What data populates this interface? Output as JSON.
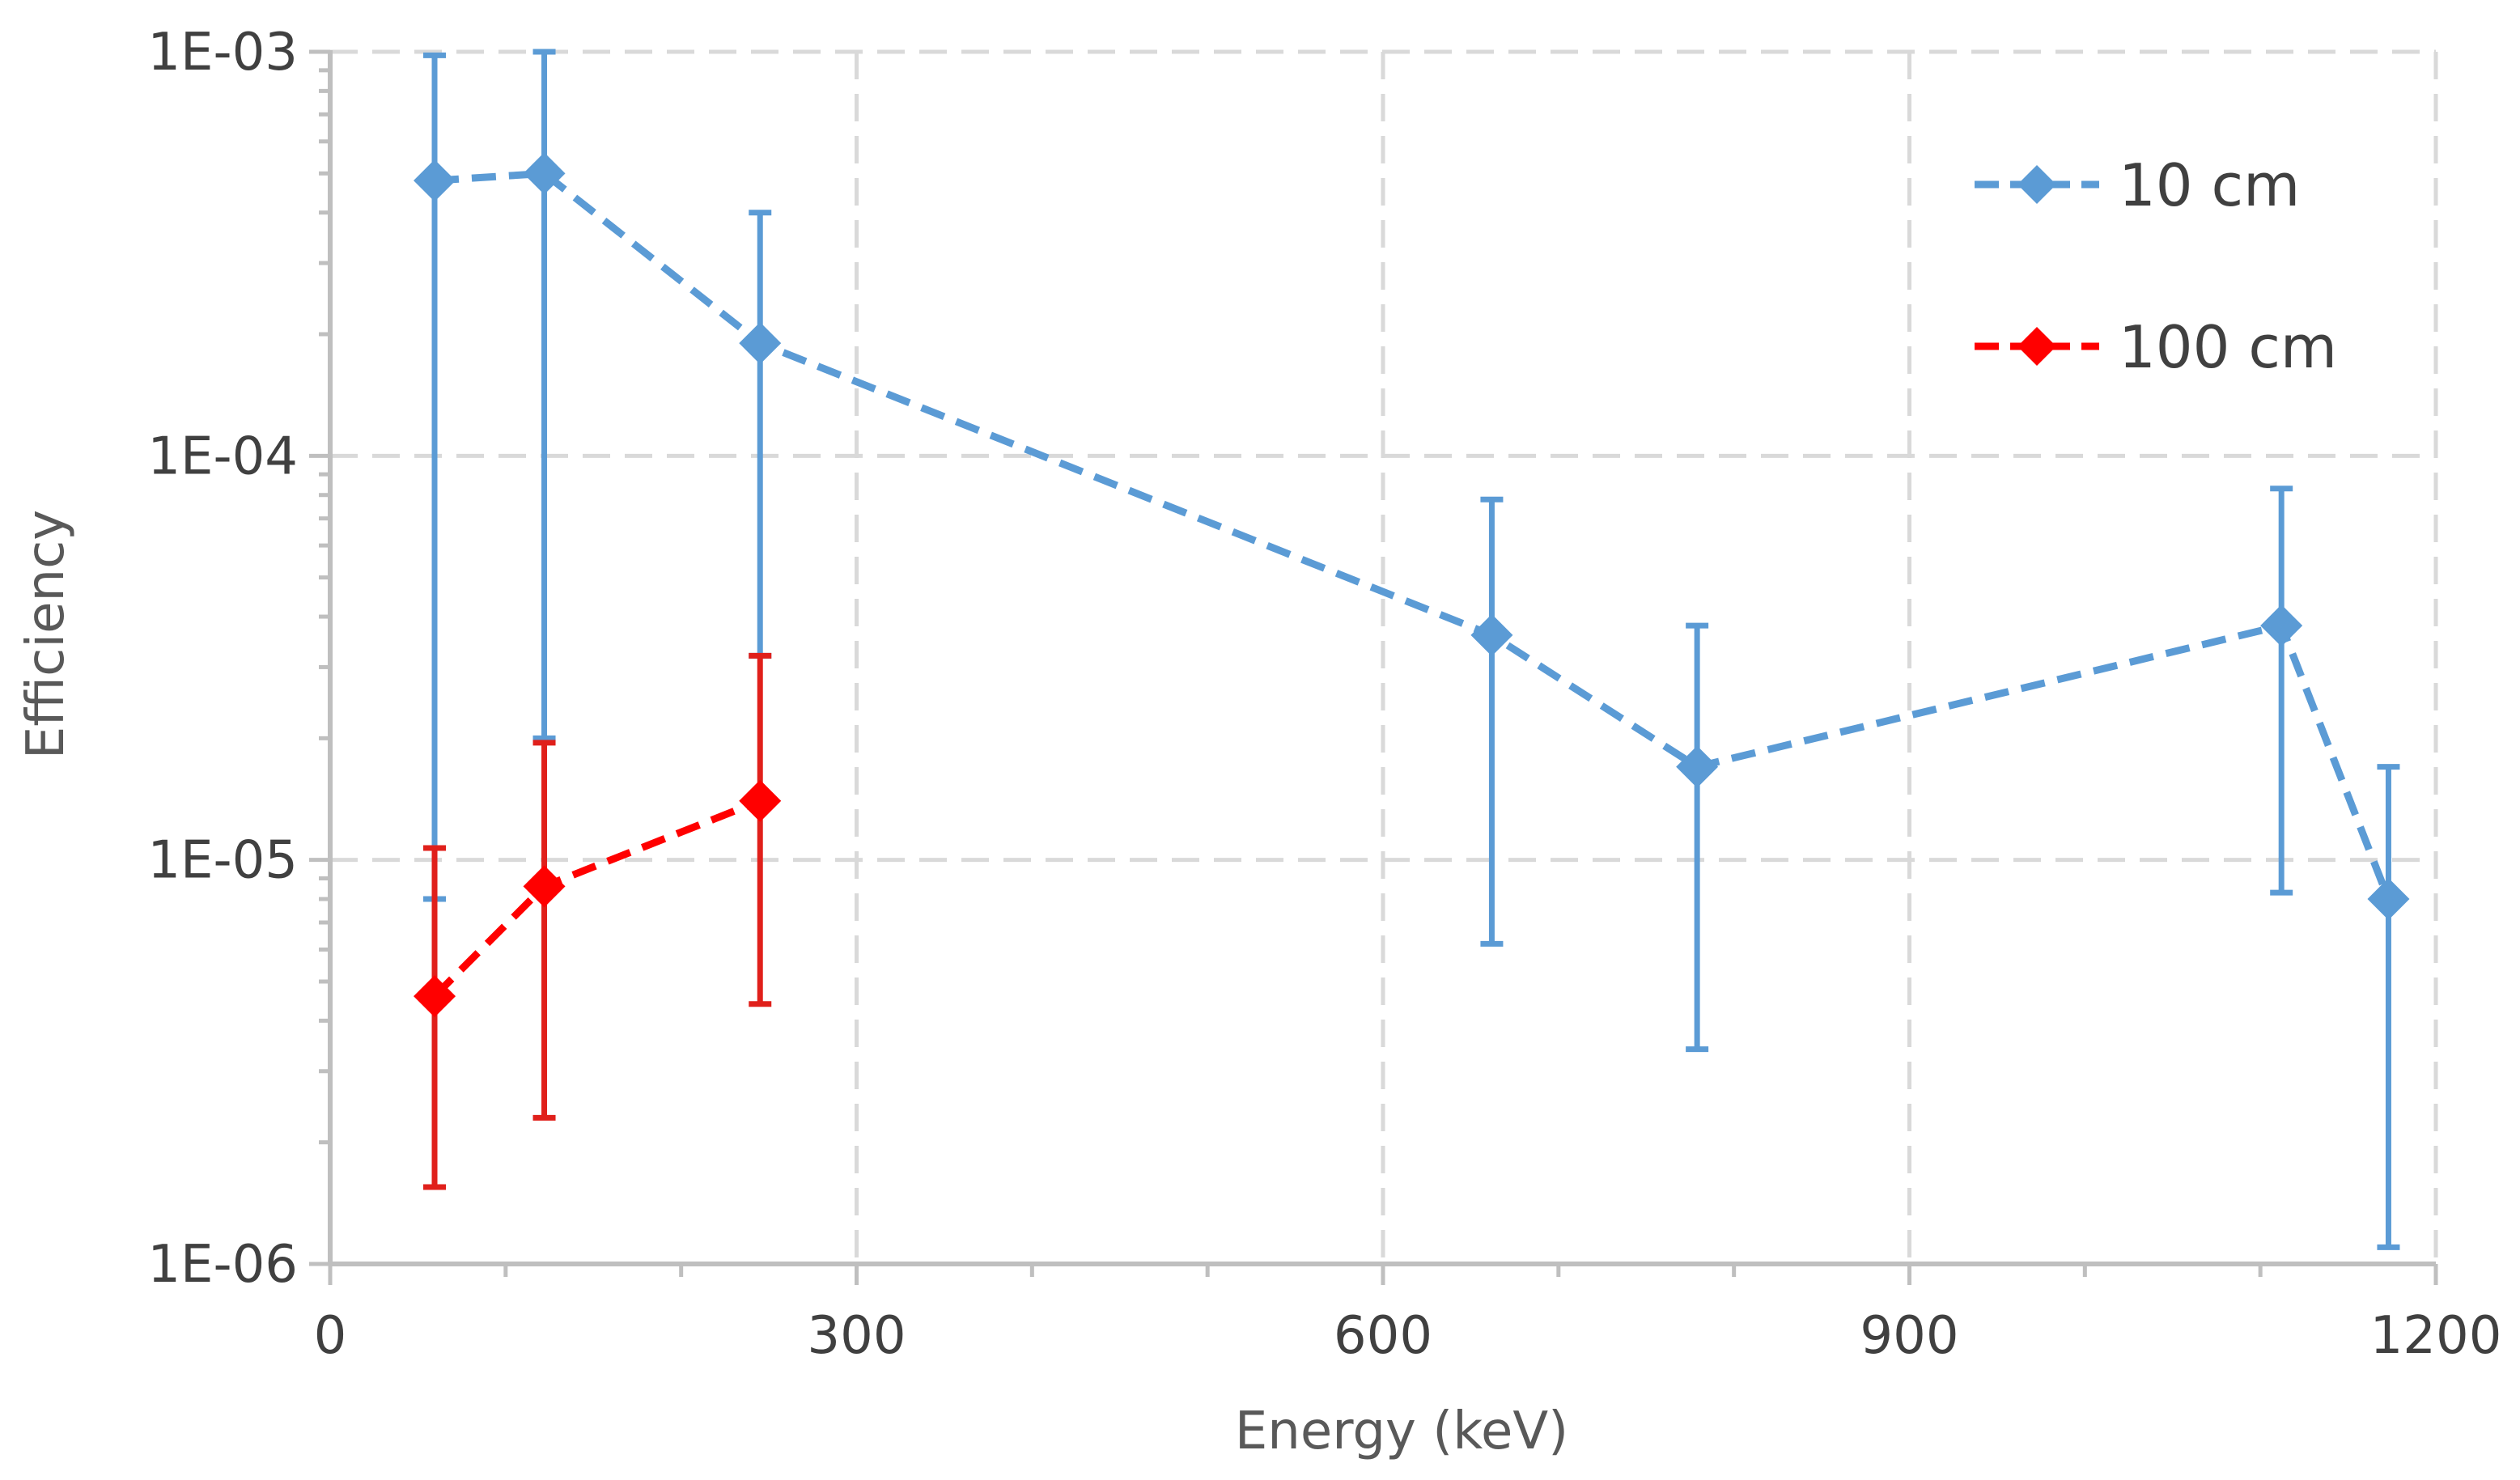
{
  "chart_data": {
    "type": "scatter",
    "title": "",
    "xlabel": "Energy (keV)",
    "ylabel": "Efficiency",
    "xlim": [
      0,
      1200
    ],
    "ylim": [
      1e-06,
      0.001
    ],
    "yscale": "log",
    "grid": true,
    "legend_position": "top-right",
    "x_ticks": [
      0,
      300,
      600,
      900,
      1200
    ],
    "x_tick_labels": [
      "0",
      "300",
      "600",
      "900",
      "1200"
    ],
    "y_ticks": [
      1e-06,
      1e-05,
      0.0001,
      0.001
    ],
    "y_tick_labels": [
      "1E-06",
      "1E-05",
      "1E-04",
      "1E-03"
    ],
    "series": [
      {
        "name": "10 cm",
        "color": "#5B9BD5",
        "marker": "diamond",
        "line": "dashed",
        "x": [
          59.5,
          122,
          245,
          662,
          779,
          1112,
          1173
        ],
        "y": [
          0.00048,
          0.0005,
          0.00019,
          3.6e-05,
          1.7e-05,
          3.8e-05,
          8e-06
        ],
        "err_low": [
          8e-06,
          2e-05,
          3.2e-05,
          6.2e-06,
          3.4e-06,
          8.3e-06,
          1.1e-06
        ],
        "err_high": [
          0.00098,
          0.001,
          0.0004,
          7.8e-05,
          3.8e-05,
          8.3e-05,
          1.7e-05
        ]
      },
      {
        "name": "100 cm",
        "color": "#FF0000",
        "error_color": "#E0201B",
        "marker": "diamond",
        "line": "dashed",
        "x": [
          59.5,
          122,
          245
        ],
        "y": [
          4.6e-06,
          8.6e-06,
          1.4e-05
        ],
        "err_low": [
          1.55e-06,
          2.3e-06,
          4.4e-06
        ],
        "err_high": [
          1.07e-05,
          1.95e-05,
          3.2e-05
        ]
      }
    ]
  }
}
